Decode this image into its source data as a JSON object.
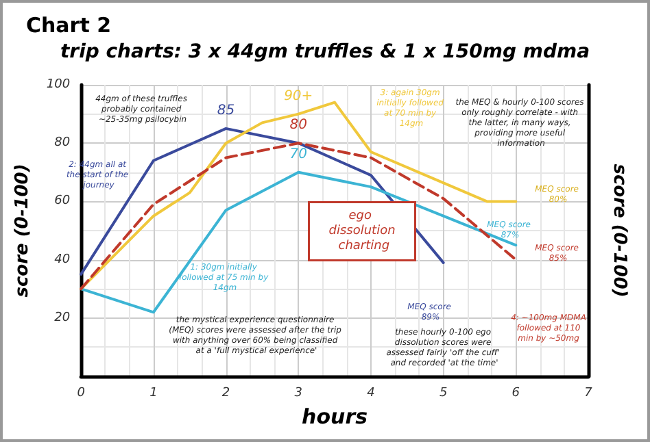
{
  "chart_data": {
    "type": "line",
    "title": "Chart 2",
    "subtitle": "trip charts: 3 x 44gm truffles & 1 x 150mg mdma",
    "xlabel": "hours",
    "ylabel": "score (0-100)",
    "y2label": "score (0-100)",
    "xlim": [
      0,
      7
    ],
    "xticks": [
      0,
      1,
      2,
      3,
      4,
      5,
      6,
      7
    ],
    "ylim": [
      0,
      100
    ],
    "yticks": [
      20,
      40,
      60,
      80,
      100
    ],
    "grid": true,
    "legend": false,
    "marker": "none",
    "series": [
      {
        "name": "2: 44gm all at the start of the journey",
        "color": "#3a4a9c",
        "x": [
          0,
          1,
          2,
          3,
          4,
          5
        ],
        "values": [
          35,
          74,
          85,
          80,
          69,
          39
        ],
        "value_labels": [
          null,
          null,
          "85",
          null,
          null,
          null
        ]
      },
      {
        "name": "1: 30gm initially followed at 75 min by 14gm",
        "color": "#3cb4d4",
        "x": [
          0,
          1,
          2,
          3,
          4,
          5,
          6
        ],
        "values": [
          30,
          22,
          57,
          70,
          65,
          55,
          45
        ],
        "value_labels": [
          null,
          null,
          null,
          "70",
          null,
          null,
          null
        ]
      },
      {
        "name": "3: again 30gm initially followed at 70 min by 14gm",
        "color": "#f0c83c",
        "x": [
          0,
          1,
          1.5,
          2,
          2.5,
          3,
          3.5,
          4,
          5.6,
          6
        ],
        "values": [
          30,
          55,
          63,
          80,
          87,
          90,
          94,
          77,
          60,
          60
        ],
        "value_labels": [
          null,
          null,
          null,
          null,
          null,
          "90+",
          null,
          null,
          null,
          null
        ]
      },
      {
        "name": "4: ~100mg MDMA followed at 110 min by ~50mg",
        "color": "#c0392b",
        "line_style": "dashed",
        "x": [
          0,
          1,
          2,
          3,
          4,
          5,
          6
        ],
        "values": [
          30,
          59,
          75,
          80,
          75,
          61,
          40
        ],
        "value_labels": [
          null,
          null,
          null,
          "80",
          null,
          null,
          null
        ]
      }
    ],
    "annotations": [
      "44gm of these truffles probably contained ~25-35mg psilocybin",
      "the MEQ & hourly 0-100 scores only roughly correlate - with the latter, in many ways, providing more useful information",
      "ego dissolution charting",
      "the mystical experience questionnaire (MEQ) scores were assessed after the trip with anything over 60% being classified at a 'full mystical experience'",
      "these hourly 0-100 ego dissolution scores were assessed fairly 'off the cuff' and recorded 'at the time'",
      "MEQ score 89%",
      "MEQ score 87%",
      "MEQ score 85%",
      "MEQ score 80%"
    ]
  }
}
